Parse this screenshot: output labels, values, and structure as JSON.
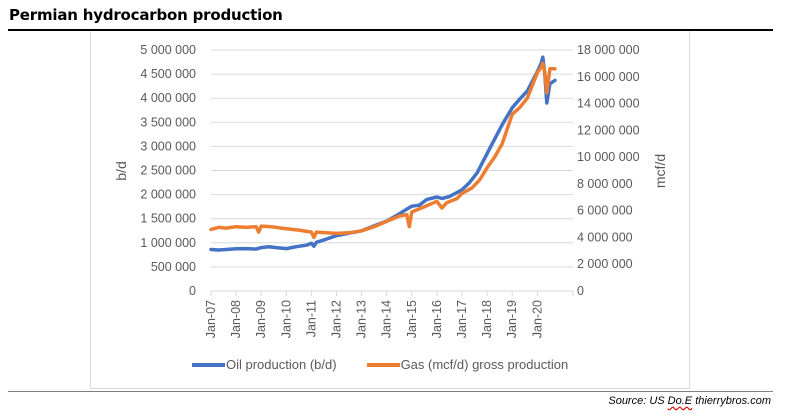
{
  "header": {
    "title": "Permian hydrocarbon production"
  },
  "footer": {
    "source_prefix": "Source: US ",
    "source_squiggle": "Do.E",
    "source_suffix": " thierrybros.com"
  },
  "chart_data": {
    "type": "line",
    "title": "Permian hydrocarbon production",
    "xlabel": "",
    "ylabel": "b/d",
    "y2label": "mcf/d",
    "x_tick_labels": [
      "Jan-07",
      "Jan-08",
      "Jan-09",
      "Jan-10",
      "Jan-11",
      "Jan-12",
      "Jan-13",
      "Jan-14",
      "Jan-15",
      "Jan-16",
      "Jan-17",
      "Jan-18",
      "Jan-19",
      "Jan-20"
    ],
    "x_range": [
      2007.0,
      2020.9
    ],
    "ylim": [
      0,
      5000000
    ],
    "y2lim": [
      0,
      18000000
    ],
    "y_ticks": [
      0,
      500000,
      1000000,
      1500000,
      2000000,
      2500000,
      3000000,
      3500000,
      4000000,
      4500000,
      5000000
    ],
    "y_tick_labels": [
      "0",
      "500 000",
      "1 000 000",
      "1 500 000",
      "2 000 000",
      "2 500 000",
      "3 000 000",
      "3 500 000",
      "4 000 000",
      "4 500 000",
      "5 000 000"
    ],
    "y2_ticks": [
      0,
      2000000,
      4000000,
      6000000,
      8000000,
      10000000,
      12000000,
      14000000,
      16000000,
      18000000
    ],
    "y2_tick_labels": [
      "0",
      "2 000 000",
      "4 000 000",
      "6 000 000",
      "8 000 000",
      "10 000 000",
      "12 000 000",
      "14 000 000",
      "16 000 000",
      "18 000 000"
    ],
    "grid": true,
    "legend_position": "bottom",
    "series": [
      {
        "name": "Oil production (b/d)",
        "axis": "left",
        "color": "#4472c4",
        "x": [
          2007.0,
          2007.3,
          2007.6,
          2008.0,
          2008.4,
          2008.8,
          2009.0,
          2009.3,
          2009.6,
          2010.0,
          2010.4,
          2010.8,
          2011.0,
          2011.1,
          2011.2,
          2011.5,
          2012.0,
          2012.5,
          2013.0,
          2013.5,
          2014.0,
          2014.5,
          2014.8,
          2015.0,
          2015.3,
          2015.6,
          2016.0,
          2016.2,
          2016.5,
          2017.0,
          2017.3,
          2017.6,
          2018.0,
          2018.3,
          2018.6,
          2019.0,
          2019.3,
          2019.6,
          2020.0,
          2020.15,
          2020.22,
          2020.3,
          2020.38,
          2020.5,
          2020.7
        ],
        "values": [
          860000,
          850000,
          860000,
          875000,
          880000,
          870000,
          900000,
          920000,
          900000,
          880000,
          920000,
          950000,
          990000,
          930000,
          1010000,
          1060000,
          1150000,
          1200000,
          1250000,
          1350000,
          1450000,
          1600000,
          1700000,
          1760000,
          1780000,
          1900000,
          1950000,
          1920000,
          1960000,
          2100000,
          2250000,
          2450000,
          2850000,
          3150000,
          3450000,
          3800000,
          3980000,
          4150000,
          4550000,
          4720000,
          4850000,
          4500000,
          3900000,
          4300000,
          4370000
        ]
      },
      {
        "name": "Gas (mcf/d) gross production",
        "axis": "right",
        "color": "#ed7d31",
        "x": [
          2007.0,
          2007.3,
          2007.6,
          2008.0,
          2008.4,
          2008.8,
          2008.9,
          2009.0,
          2009.4,
          2009.8,
          2010.0,
          2010.5,
          2011.0,
          2011.1,
          2011.2,
          2011.6,
          2012.0,
          2012.5,
          2013.0,
          2013.5,
          2014.0,
          2014.5,
          2014.8,
          2014.9,
          2015.0,
          2015.5,
          2016.0,
          2016.2,
          2016.4,
          2016.8,
          2017.0,
          2017.4,
          2017.7,
          2018.0,
          2018.3,
          2018.6,
          2019.0,
          2019.3,
          2019.6,
          2020.0,
          2020.15,
          2020.22,
          2020.3,
          2020.38,
          2020.5,
          2020.7
        ],
        "values": [
          4600000,
          4750000,
          4700000,
          4800000,
          4750000,
          4800000,
          4400000,
          4850000,
          4800000,
          4700000,
          4650000,
          4550000,
          4400000,
          4000000,
          4400000,
          4350000,
          4300000,
          4350000,
          4500000,
          4800000,
          5200000,
          5600000,
          5700000,
          4800000,
          5900000,
          6300000,
          6700000,
          6200000,
          6600000,
          6900000,
          7300000,
          7700000,
          8300000,
          9200000,
          10000000,
          11000000,
          13200000,
          13700000,
          14400000,
          16300000,
          16700000,
          17000000,
          16300000,
          14800000,
          16600000,
          16600000
        ]
      }
    ]
  }
}
